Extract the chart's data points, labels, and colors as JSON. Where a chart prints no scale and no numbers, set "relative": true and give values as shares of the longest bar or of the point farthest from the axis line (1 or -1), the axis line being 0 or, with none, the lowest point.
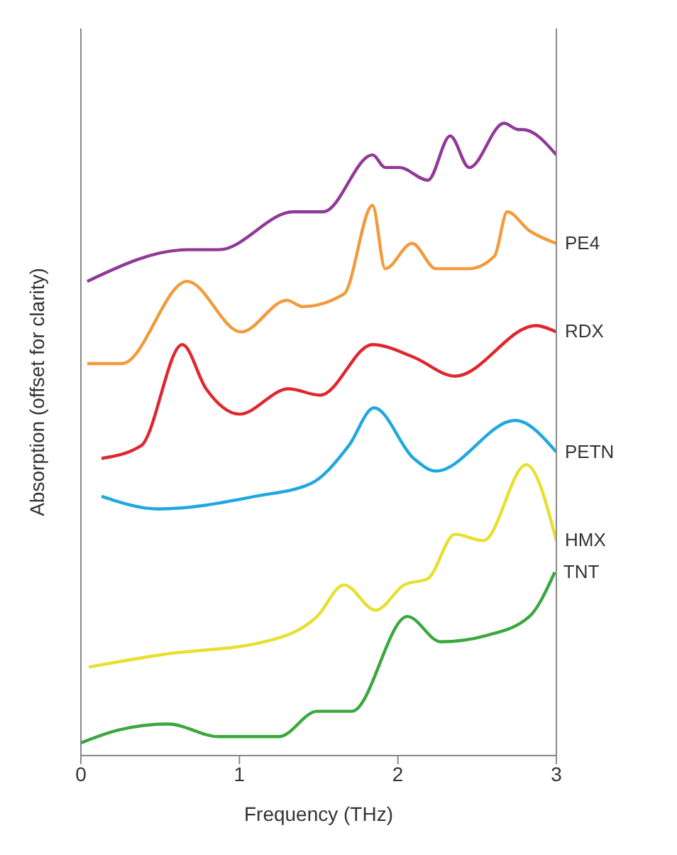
{
  "chart_data": {
    "type": "line",
    "relative": true,
    "xlabel": "Frequency (THz)",
    "ylabel": "Absorption (offset for clarity)",
    "xlim": [
      0,
      3
    ],
    "xticks": [
      0,
      1,
      2,
      3
    ],
    "marker": "none",
    "line_style": "solid",
    "series": [
      {
        "color": "#8e3a96",
        "x": [
          0.04,
          0.67,
          0.87,
          1.34,
          1.53,
          1.84,
          1.92,
          2.01,
          2.19,
          2.33,
          2.45,
          2.67,
          2.76,
          2.79,
          3.0
        ],
        "values": [
          0.75,
          0.8,
          0.8,
          0.86,
          0.86,
          0.95,
          0.93,
          0.93,
          0.91,
          0.98,
          0.93,
          1.0,
          0.99,
          0.99,
          0.95
        ]
      },
      {
        "name": "PE4",
        "color": "#f39a3a",
        "x": [
          0.04,
          0.26,
          0.67,
          1.01,
          1.3,
          1.4,
          1.66,
          1.84,
          1.92,
          2.09,
          2.24,
          2.45,
          2.61,
          2.69,
          2.83,
          3.0
        ],
        "values": [
          0.62,
          0.62,
          0.75,
          0.67,
          0.72,
          0.71,
          0.73,
          0.87,
          0.77,
          0.81,
          0.77,
          0.77,
          0.79,
          0.86,
          0.83,
          0.81
        ]
      },
      {
        "name": "RDX",
        "color": "#e0262e",
        "x": [
          0.13,
          0.38,
          0.64,
          0.79,
          1.0,
          1.31,
          1.51,
          1.84,
          2.1,
          2.36,
          2.87,
          3.0
        ],
        "values": [
          0.47,
          0.49,
          0.65,
          0.58,
          0.54,
          0.58,
          0.57,
          0.65,
          0.63,
          0.6,
          0.68,
          0.67
        ]
      },
      {
        "name": "PETN",
        "color": "#1fa8e0",
        "x": [
          0.13,
          0.49,
          1.1,
          1.45,
          1.69,
          1.85,
          2.1,
          2.24,
          2.74,
          3.0
        ],
        "values": [
          0.41,
          0.39,
          0.41,
          0.43,
          0.49,
          0.55,
          0.47,
          0.45,
          0.53,
          0.48
        ]
      },
      {
        "name": "HMX",
        "color": "#e8df2e",
        "x": [
          0.05,
          0.52,
          1.16,
          1.49,
          1.66,
          1.86,
          2.04,
          2.19,
          2.36,
          2.54,
          2.81,
          3.0
        ],
        "values": [
          0.14,
          0.16,
          0.18,
          0.22,
          0.27,
          0.23,
          0.27,
          0.28,
          0.35,
          0.34,
          0.46,
          0.34
        ]
      },
      {
        "name": "TNT",
        "color": "#3aa83e",
        "x": [
          0.0,
          0.23,
          0.55,
          0.87,
          1.25,
          1.49,
          1.71,
          2.06,
          2.27,
          2.56,
          2.83,
          2.99
        ],
        "values": [
          0.02,
          0.04,
          0.05,
          0.03,
          0.03,
          0.07,
          0.07,
          0.22,
          0.18,
          0.19,
          0.22,
          0.29
        ]
      }
    ]
  }
}
